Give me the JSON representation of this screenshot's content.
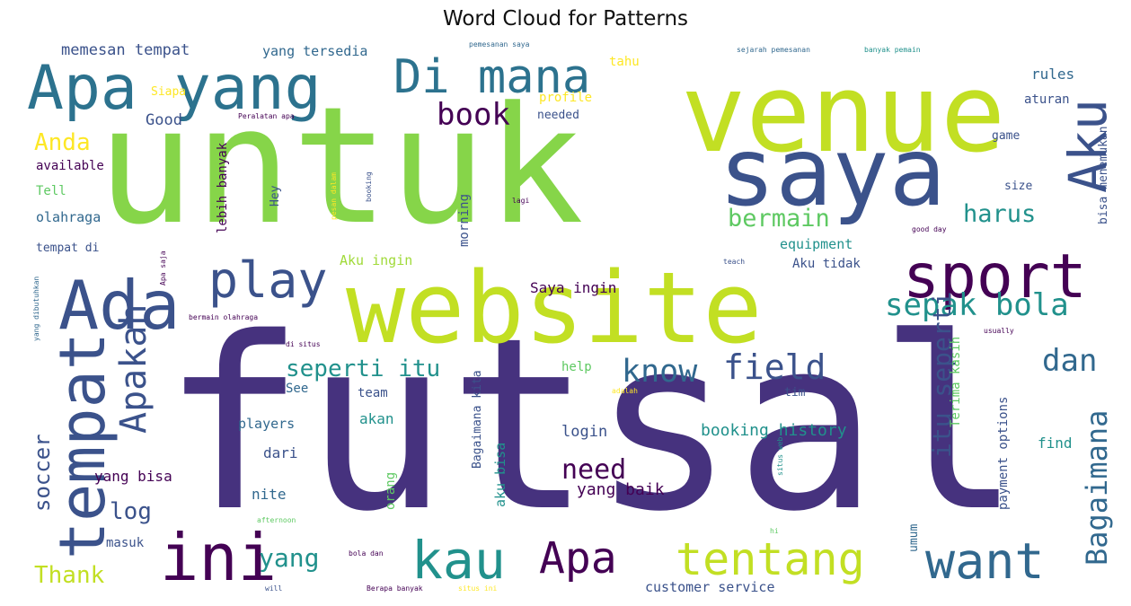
{
  "chart_data": {
    "type": "wordcloud",
    "title": "Word Cloud for Patterns",
    "palette": [
      "#440154",
      "#46327e",
      "#365c8d",
      "#277f8e",
      "#1fa187",
      "#4ac16d",
      "#a0da39",
      "#fde725"
    ],
    "words": [
      {
        "text": "futsal",
        "size": 6,
        "color": "#46327e"
      },
      {
        "text": "untuk",
        "size": 5,
        "color": "#86d549"
      },
      {
        "text": "venue",
        "size": 5,
        "color": "#c2df23"
      },
      {
        "text": "website",
        "size": 5,
        "color": "#c2df23"
      },
      {
        "text": "saya",
        "size": 5,
        "color": "#3b528b"
      },
      {
        "text": "Apa yang",
        "size": 4,
        "color": "#2c728e"
      },
      {
        "text": "sport",
        "size": 4,
        "color": "#440154"
      },
      {
        "text": "Ada",
        "size": 4,
        "color": "#3b528b"
      },
      {
        "text": "tempat",
        "size": 4,
        "color": "#3b528b"
      },
      {
        "text": "ini",
        "size": 4,
        "color": "#440154"
      },
      {
        "text": "want",
        "size": 4,
        "color": "#31688e"
      },
      {
        "text": "kau",
        "size": 4,
        "color": "#21918c"
      },
      {
        "text": "Apa",
        "size": 4,
        "color": "#440154"
      },
      {
        "text": "tentang",
        "size": 4,
        "color": "#c2df23"
      },
      {
        "text": "Di mana",
        "size": 4,
        "color": "#2c728e"
      },
      {
        "text": "play",
        "size": 4,
        "color": "#3b528b"
      },
      {
        "text": "Aku",
        "size": 4,
        "color": "#3b528b"
      },
      {
        "text": "field",
        "size": 3,
        "color": "#3b528b"
      },
      {
        "text": "know",
        "size": 3,
        "color": "#31688e"
      },
      {
        "text": "Apakah",
        "size": 3,
        "color": "#3b528b"
      },
      {
        "text": "sepak bola",
        "size": 3,
        "color": "#21918c"
      },
      {
        "text": "seperti itu",
        "size": 3,
        "color": "#21918c"
      },
      {
        "text": "itu seperti",
        "size": 3,
        "color": "#3b528b"
      },
      {
        "text": "dan",
        "size": 3,
        "color": "#31688e"
      },
      {
        "text": "Bagaimana",
        "size": 3,
        "color": "#31688e"
      },
      {
        "text": "bermain",
        "size": 3,
        "color": "#5ec962"
      },
      {
        "text": "harus",
        "size": 3,
        "color": "#21918c"
      },
      {
        "text": "book",
        "size": 3,
        "color": "#440154"
      },
      {
        "text": "need",
        "size": 3,
        "color": "#440154"
      },
      {
        "text": "soccer",
        "size": 2,
        "color": "#3b528b"
      },
      {
        "text": "log",
        "size": 2,
        "color": "#3b528b"
      },
      {
        "text": "yang",
        "size": 2,
        "color": "#21918c"
      },
      {
        "text": "Thank",
        "size": 2,
        "color": "#c2df23"
      },
      {
        "text": "Anda",
        "size": 2,
        "color": "#fde725"
      },
      {
        "text": "memesan tempat",
        "size": 1,
        "color": "#3b528b"
      },
      {
        "text": "yang tersedia",
        "size": 1,
        "color": "#31688e"
      },
      {
        "text": "pemesanan saya",
        "size": 1,
        "color": "#31688e"
      },
      {
        "text": "sejarah pemesanan",
        "size": 1,
        "color": "#31688e"
      },
      {
        "text": "banyak pemain",
        "size": 1,
        "color": "#21918c"
      },
      {
        "text": "rules",
        "size": 1,
        "color": "#31688e"
      },
      {
        "text": "aturan",
        "size": 1,
        "color": "#3b528b"
      },
      {
        "text": "tahu",
        "size": 1,
        "color": "#fde725"
      },
      {
        "text": "profile",
        "size": 1,
        "color": "#fde725"
      },
      {
        "text": "needed",
        "size": 1,
        "color": "#3b528b"
      },
      {
        "text": "Siapa",
        "size": 1,
        "color": "#fde725"
      },
      {
        "text": "Good",
        "size": 1,
        "color": "#3b528b"
      },
      {
        "text": "Peralatan apa",
        "size": 1,
        "color": "#440154"
      },
      {
        "text": "available",
        "size": 1,
        "color": "#440154"
      },
      {
        "text": "Tell",
        "size": 1,
        "color": "#5ec962"
      },
      {
        "text": "olahraga",
        "size": 1,
        "color": "#31688e"
      },
      {
        "text": "tempat di",
        "size": 1,
        "color": "#3b528b"
      },
      {
        "text": "game",
        "size": 1,
        "color": "#3b528b"
      },
      {
        "text": "size",
        "size": 1,
        "color": "#3b528b"
      },
      {
        "text": "bisa menemukan",
        "size": 1,
        "color": "#3b528b"
      },
      {
        "text": "good day",
        "size": 1,
        "color": "#440154"
      },
      {
        "text": "teach",
        "size": 1,
        "color": "#3b528b"
      },
      {
        "text": "equipment",
        "size": 1,
        "color": "#21918c"
      },
      {
        "text": "Aku tidak",
        "size": 1,
        "color": "#3b528b"
      },
      {
        "text": "Aku ingin",
        "size": 1,
        "color": "#a0da39"
      },
      {
        "text": "Saya ingin",
        "size": 1,
        "color": "#440154"
      },
      {
        "text": "lebih banyak",
        "size": 1,
        "color": "#440154"
      },
      {
        "text": "Hey",
        "size": 1,
        "color": "#3b528b"
      },
      {
        "text": "morning",
        "size": 1,
        "color": "#3b528b"
      },
      {
        "text": "lagi",
        "size": 1,
        "color": "#440154"
      },
      {
        "text": "booking",
        "size": 1,
        "color": "#3b528b"
      },
      {
        "text": "pesan dalam",
        "size": 1,
        "color": "#fde725"
      },
      {
        "text": "bermain olahraga",
        "size": 1,
        "color": "#440154"
      },
      {
        "text": "yang dibutuhkan",
        "size": 1,
        "color": "#31688e"
      },
      {
        "text": "Apa saja",
        "size": 1,
        "color": "#440154"
      },
      {
        "text": "di situs",
        "size": 1,
        "color": "#440154"
      },
      {
        "text": "usually",
        "size": 1,
        "color": "#440154"
      },
      {
        "text": "See",
        "size": 1,
        "color": "#31688e"
      },
      {
        "text": "team",
        "size": 1,
        "color": "#3b528b"
      },
      {
        "text": "help",
        "size": 1,
        "color": "#5ec962"
      },
      {
        "text": "adalah",
        "size": 1,
        "color": "#fde725"
      },
      {
        "text": "tim",
        "size": 1,
        "color": "#3b528b"
      },
      {
        "text": "Terima kasih",
        "size": 1,
        "color": "#5ec962"
      },
      {
        "text": "payment options",
        "size": 1,
        "color": "#3b528b"
      },
      {
        "text": "players",
        "size": 1,
        "color": "#31688e"
      },
      {
        "text": "akan",
        "size": 1,
        "color": "#21918c"
      },
      {
        "text": "booking history",
        "size": 1,
        "color": "#21918c"
      },
      {
        "text": "login",
        "size": 1,
        "color": "#3b528b"
      },
      {
        "text": "find",
        "size": 1,
        "color": "#21918c"
      },
      {
        "text": "yang bisa",
        "size": 1,
        "color": "#440154"
      },
      {
        "text": "dari",
        "size": 1,
        "color": "#3b528b"
      },
      {
        "text": "nite",
        "size": 1,
        "color": "#31688e"
      },
      {
        "text": "yang baik",
        "size": 1,
        "color": "#440154"
      },
      {
        "text": "aku bisa",
        "size": 1,
        "color": "#21918c"
      },
      {
        "text": "orang",
        "size": 1,
        "color": "#5ec962"
      },
      {
        "text": "Bagaimana kita",
        "size": 1,
        "color": "#3b528b"
      },
      {
        "text": "situs web",
        "size": 1,
        "color": "#21918c"
      },
      {
        "text": "umum",
        "size": 1,
        "color": "#31688e"
      },
      {
        "text": "afternoon",
        "size": 1,
        "color": "#5ec962"
      },
      {
        "text": "hi",
        "size": 1,
        "color": "#5ec962"
      },
      {
        "text": "masuk",
        "size": 1,
        "color": "#3b528b"
      },
      {
        "text": "bola dan",
        "size": 1,
        "color": "#440154"
      },
      {
        "text": "Berapa banyak",
        "size": 1,
        "color": "#440154"
      },
      {
        "text": "situs ini",
        "size": 1,
        "color": "#fde725"
      },
      {
        "text": "customer service",
        "size": 1,
        "color": "#3b528b"
      },
      {
        "text": "will",
        "size": 1,
        "color": "#3b528b"
      }
    ]
  }
}
